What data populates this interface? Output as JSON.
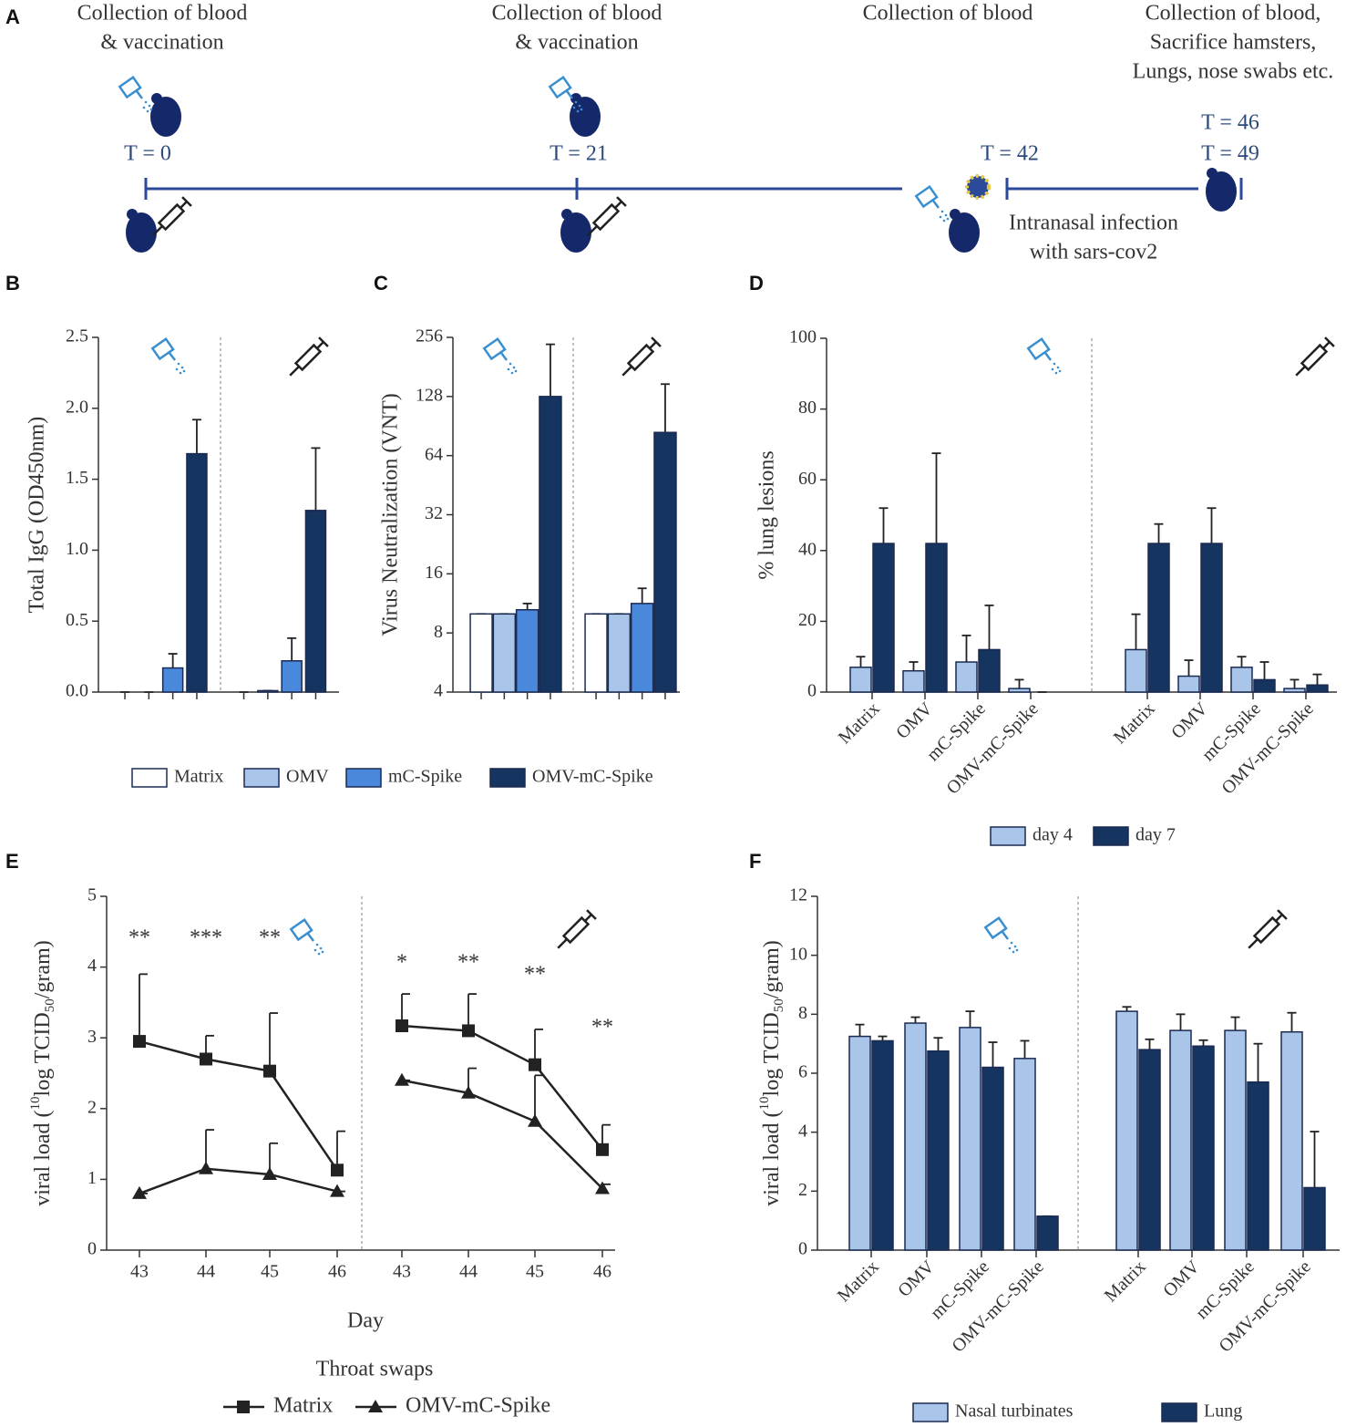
{
  "timeline": {
    "panel": "A",
    "events": [
      {
        "label": [
          "Collection of blood",
          "& vaccination"
        ],
        "time": [
          "T = 0"
        ]
      },
      {
        "label": [
          "Collection of blood",
          "& vaccination"
        ],
        "time": [
          "T = 21"
        ]
      },
      {
        "label": [
          "Collection of blood"
        ],
        "time": [
          "T = 42"
        ]
      },
      {
        "label": [
          "Collection of blood,",
          "Sacrifice hamsters,",
          "Lungs, nose swabs etc."
        ],
        "time": [
          "T = 46",
          "T = 49"
        ]
      }
    ],
    "infection": [
      "Intranasal infection",
      "with sars-cov2"
    ]
  },
  "chart_data": [
    {
      "panel": "B",
      "type": "bar",
      "ylabel": "Total IgG (OD450nm)",
      "categories": [
        null,
        null
      ],
      "series": [
        {
          "name": "Matrix",
          "color": "#ffffff",
          "values": [
            0,
            0
          ],
          "errors": [
            0,
            0
          ]
        },
        {
          "name": "OMV",
          "color": "#a9c5ea",
          "values": [
            0,
            0.01
          ],
          "errors": [
            0,
            0
          ]
        },
        {
          "name": "mC-Spike",
          "color": "#4a88dc",
          "values": [
            0.17,
            0.22
          ],
          "errors": [
            0.1,
            0.16
          ]
        },
        {
          "name": "OMV-mC-Spike",
          "color": "#15345f",
          "values": [
            1.68,
            1.28
          ],
          "errors": [
            0.24,
            0.44
          ]
        }
      ],
      "ylim": [
        0,
        2.5
      ],
      "yticks": [
        {
          "value": 0,
          "label": "0.0"
        },
        0.5,
        {
          "value": 1,
          "label": "1.0"
        },
        1.5,
        {
          "value": 2,
          "label": "2.0"
        },
        2.5
      ],
      "legend": "bottom"
    },
    {
      "panel": "C",
      "type": "bar",
      "ylabel": "Virus Neutralization (VNT)",
      "yscale": "log",
      "categories": [
        null,
        null
      ],
      "series": [
        {
          "color": "#ffffff",
          "values": [
            10,
            10
          ],
          "errors": [
            0,
            0
          ]
        },
        {
          "color": "#a9c5ea",
          "values": [
            10,
            10
          ],
          "errors": [
            0,
            0
          ]
        },
        {
          "color": "#4a88dc",
          "values": [
            10.5,
            11.3
          ],
          "errors": [
            0.8,
            2.2
          ]
        },
        {
          "color": "#15345f",
          "values": [
            128,
            84
          ],
          "errors": [
            108,
            64
          ]
        }
      ],
      "ylim": [
        4,
        256
      ],
      "yticks": [
        4,
        8,
        16,
        32,
        64,
        128,
        256
      ]
    },
    {
      "panel": "D",
      "type": "bar",
      "ylabel": "% lung lesions",
      "categories": [
        "Matrix",
        "OMV",
        "mC-Spike",
        "OMV-mC-Spike",
        "Matrix",
        "OMV",
        "mC-Spike",
        "OMV-mC-Spike"
      ],
      "series": [
        {
          "name": "day 4",
          "color": "#a9c5ea",
          "values": [
            7,
            6,
            8.5,
            1,
            12,
            4.5,
            7,
            1
          ],
          "errors": [
            3,
            2.5,
            7.5,
            2.5,
            10,
            4.5,
            3,
            2.5
          ]
        },
        {
          "name": "day 7",
          "color": "#15345f",
          "values": [
            42,
            42,
            12,
            0,
            42,
            42,
            3.5,
            2
          ],
          "errors": [
            10,
            25.5,
            12.5,
            0,
            5.5,
            10,
            5,
            3
          ]
        }
      ],
      "ylim": [
        0,
        100
      ],
      "yticks": [
        0,
        20,
        40,
        60,
        80,
        100
      ],
      "legend": "bottom"
    },
    {
      "panel": "E",
      "type": "line",
      "ylabel": [
        "viral load (",
        "10",
        "log TCID",
        "50",
        "/gram)"
      ],
      "xlabel": "Day",
      "legend_title": "Throat swaps",
      "categories": [
        "43",
        "44",
        "45",
        "46",
        "43",
        "44",
        "45",
        "46"
      ],
      "annotations": [
        "**",
        "***",
        "**",
        null,
        "*",
        "**",
        "**",
        "**"
      ],
      "series": [
        {
          "name": "Matrix",
          "color": "#222222",
          "marker": "square",
          "values": [
            2.95,
            2.7,
            2.53,
            1.13,
            3.17,
            3.1,
            2.62,
            1.42
          ],
          "errors": [
            0.95,
            0.33,
            0.82,
            0.55,
            0.45,
            0.52,
            0.5,
            0.35
          ]
        },
        {
          "name": "OMV-mC-Spike",
          "color": "#222222",
          "marker": "triangle",
          "values": [
            0.8,
            1.15,
            1.07,
            0.83,
            2.4,
            2.22,
            1.82,
            0.87
          ],
          "errors": [
            0,
            0.55,
            0.44,
            0,
            0,
            0.35,
            0.65,
            0.06
          ]
        }
      ],
      "ylim": [
        0,
        5
      ],
      "yticks": [
        0,
        1,
        2,
        3,
        4,
        5
      ],
      "legend": "bottom"
    },
    {
      "panel": "F",
      "type": "bar",
      "ylabel": [
        "viral load (",
        "10",
        "log TCID",
        "50",
        "/gram)"
      ],
      "categories": [
        "Matrix",
        "OMV",
        "mC-Spike",
        "OMV-mC-Spike",
        "Matrix",
        "OMV",
        "mC-Spike",
        "OMV-mC-Spike"
      ],
      "series": [
        {
          "name": "Nasal turbinates",
          "color": "#a9c5ea",
          "values": [
            7.25,
            7.7,
            7.55,
            6.5,
            8.1,
            7.45,
            7.45,
            7.4
          ],
          "errors": [
            0.4,
            0.2,
            0.55,
            0.6,
            0.15,
            0.55,
            0.45,
            0.65
          ]
        },
        {
          "name": "Lung",
          "color": "#15345f",
          "values": [
            7.1,
            6.75,
            6.2,
            1.15,
            6.8,
            6.92,
            5.7,
            2.12
          ],
          "errors": [
            0.15,
            0.45,
            0.85,
            0,
            0.35,
            0.2,
            1.3,
            1.9
          ]
        }
      ],
      "ylim": [
        0,
        12
      ],
      "yticks": [
        0,
        2,
        4,
        6,
        8,
        10,
        12
      ],
      "legend": "bottom"
    }
  ]
}
